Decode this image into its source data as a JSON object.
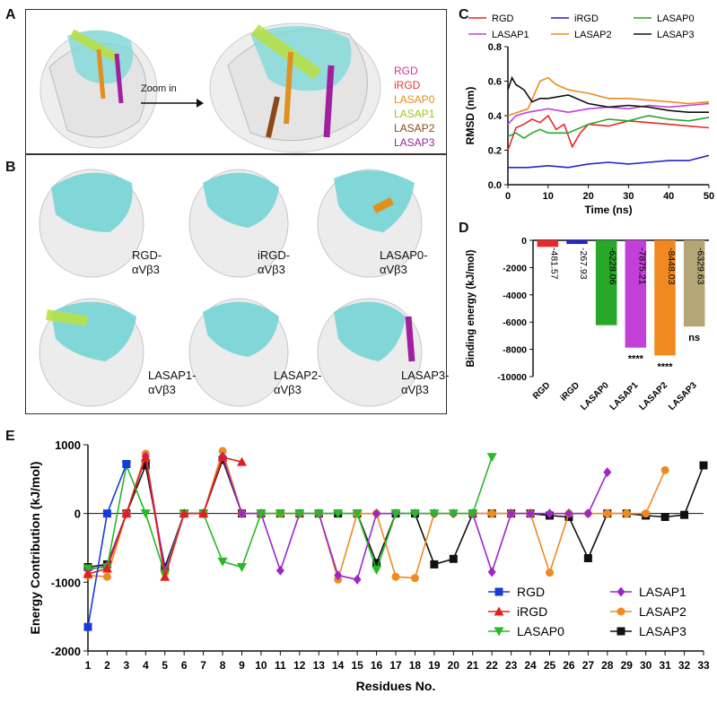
{
  "panels": {
    "a": "A",
    "b": "B",
    "c": "C",
    "d": "D",
    "e": "E"
  },
  "panelA": {
    "zoom_label": "Zoom in",
    "legend": [
      {
        "text": "RGD",
        "color": "#d6339a"
      },
      {
        "text": "iRGD",
        "color": "#e03a3a"
      },
      {
        "text": "LASAP0",
        "color": "#e09020"
      },
      {
        "text": "LASAP1",
        "color": "#9cc520"
      },
      {
        "text": "LASAP2",
        "color": "#8a4a18"
      },
      {
        "text": "LASAP3",
        "color": "#a020a0"
      }
    ]
  },
  "panelB": {
    "captions": [
      {
        "line1": "RGD-",
        "line2": "αVβ3"
      },
      {
        "line1": "iRGD-",
        "line2": "αVβ3"
      },
      {
        "line1": "LASAP0-",
        "line2": "αVβ3"
      },
      {
        "line1": "LASAP1-",
        "line2": "αVβ3"
      },
      {
        "line1": "LASAP2-",
        "line2": "αVβ3"
      },
      {
        "line1": "LASAP3-",
        "line2": "αVβ3"
      }
    ]
  },
  "chart_data": [
    {
      "panel": "C",
      "type": "line",
      "xlabel": "Time (ns)",
      "ylabel": "RMSD (nm)",
      "xlim": [
        0,
        50
      ],
      "ylim": [
        0,
        0.8
      ],
      "xticks": [
        "0",
        "10",
        "20",
        "30",
        "40",
        "50"
      ],
      "yticks": [
        "0.0",
        "0.2",
        "0.4",
        "0.6",
        "0.8"
      ],
      "legend_placement": "top",
      "series": [
        {
          "name": "RGD",
          "color": "#e8282a",
          "x": [
            0,
            2,
            4,
            6,
            8,
            10,
            12,
            14,
            16,
            18,
            20,
            25,
            30,
            35,
            40,
            45,
            50
          ],
          "values": [
            0.2,
            0.33,
            0.35,
            0.38,
            0.36,
            0.4,
            0.32,
            0.35,
            0.22,
            0.3,
            0.35,
            0.34,
            0.37,
            0.36,
            0.35,
            0.34,
            0.33
          ]
        },
        {
          "name": "iRGD",
          "color": "#2424c8",
          "x": [
            0,
            5,
            10,
            15,
            20,
            25,
            30,
            35,
            40,
            45,
            50
          ],
          "values": [
            0.1,
            0.1,
            0.11,
            0.1,
            0.12,
            0.13,
            0.12,
            0.13,
            0.14,
            0.14,
            0.17
          ]
        },
        {
          "name": "LASAP0",
          "color": "#28a828",
          "x": [
            0,
            2,
            4,
            6,
            8,
            10,
            15,
            20,
            25,
            30,
            35,
            40,
            45,
            50
          ],
          "values": [
            0.28,
            0.3,
            0.27,
            0.3,
            0.32,
            0.3,
            0.3,
            0.35,
            0.38,
            0.37,
            0.4,
            0.38,
            0.37,
            0.39
          ]
        },
        {
          "name": "LASAP1",
          "color": "#c040d8",
          "x": [
            0,
            2,
            5,
            10,
            15,
            20,
            25,
            30,
            35,
            40,
            45,
            50
          ],
          "values": [
            0.35,
            0.4,
            0.42,
            0.44,
            0.42,
            0.44,
            0.45,
            0.44,
            0.46,
            0.45,
            0.46,
            0.47
          ]
        },
        {
          "name": "LASAP2",
          "color": "#f08a20",
          "x": [
            0,
            5,
            8,
            10,
            12,
            15,
            20,
            25,
            30,
            35,
            40,
            45,
            50
          ],
          "values": [
            0.4,
            0.44,
            0.6,
            0.62,
            0.58,
            0.55,
            0.53,
            0.5,
            0.5,
            0.49,
            0.48,
            0.47,
            0.48
          ]
        },
        {
          "name": "LASAP3",
          "color": "#111111",
          "x": [
            0,
            1,
            2,
            4,
            6,
            8,
            10,
            15,
            20,
            25,
            30,
            35,
            40,
            45,
            50
          ],
          "values": [
            0.55,
            0.62,
            0.58,
            0.55,
            0.48,
            0.5,
            0.5,
            0.52,
            0.47,
            0.45,
            0.46,
            0.45,
            0.43,
            0.42,
            0.42
          ]
        }
      ]
    },
    {
      "panel": "D",
      "type": "bar",
      "ylabel": "Binding energy (kJ/mol)",
      "ylim": [
        -10000,
        0
      ],
      "yticks": [
        "0",
        "-2000",
        "-4000",
        "-6000",
        "-8000",
        "-10000"
      ],
      "categories": [
        "RGD",
        "iRGD",
        "LASAP0",
        "LASAP1",
        "LASAP2",
        "LASAP3"
      ],
      "values": [
        -481.57,
        -267.93,
        -6228.06,
        -7875.21,
        -8448.03,
        -6329.63
      ],
      "value_labels": [
        "-481.57",
        "-267.93",
        "-6228.06",
        "-7875.21",
        "-8448.03",
        "-6329.63"
      ],
      "colors": [
        "#e8282a",
        "#2424c8",
        "#28a828",
        "#c040d8",
        "#f08a20",
        "#b5a678"
      ],
      "significance": [
        "",
        "",
        "",
        "****",
        "****",
        "ns"
      ]
    },
    {
      "panel": "E",
      "type": "line",
      "xlabel": "Residues No.",
      "ylabel": "Energy Contribution (kJ/mol)",
      "xlim": [
        1,
        33
      ],
      "ylim": [
        -2000,
        1000
      ],
      "xticks": [
        "1",
        "2",
        "3",
        "4",
        "5",
        "6",
        "7",
        "8",
        "9",
        "10",
        "11",
        "12",
        "13",
        "14",
        "15",
        "16",
        "17",
        "18",
        "19",
        "20",
        "21",
        "22",
        "23",
        "24",
        "25",
        "26",
        "27",
        "28",
        "29",
        "30",
        "31",
        "32",
        "33"
      ],
      "yticks": [
        "1000",
        "0",
        "-1000",
        "-2000"
      ],
      "legend_placement": "bottom-right",
      "series": [
        {
          "name": "RGD",
          "color": "#1a3ad8",
          "marker": "square",
          "x": [
            1,
            2,
            3
          ],
          "values": [
            -1650,
            0,
            720
          ]
        },
        {
          "name": "iRGD",
          "color": "#e02020",
          "marker": "triangle-up",
          "x": [
            1,
            2,
            3,
            4,
            5,
            6,
            7,
            8,
            9
          ],
          "values": [
            -880,
            -800,
            0,
            820,
            -920,
            0,
            0,
            820,
            750
          ]
        },
        {
          "name": "LASAP0",
          "color": "#28b828",
          "marker": "triangle-down",
          "x": [
            1,
            2,
            3,
            4,
            5,
            6,
            7,
            8,
            9,
            10,
            11,
            12,
            13,
            14,
            15,
            16,
            17,
            18,
            19,
            20,
            21,
            22
          ],
          "values": [
            -800,
            -780,
            700,
            0,
            -880,
            0,
            0,
            -700,
            -780,
            0,
            0,
            0,
            0,
            0,
            0,
            -820,
            0,
            0,
            0,
            0,
            0,
            820
          ]
        },
        {
          "name": "LASAP1",
          "color": "#9a28c8",
          "marker": "diamond",
          "x": [
            1,
            2,
            3,
            4,
            5,
            6,
            7,
            8,
            9,
            10,
            11,
            12,
            13,
            14,
            15,
            16,
            17,
            18,
            19,
            20,
            21,
            22,
            23,
            24,
            25,
            26,
            27,
            28
          ],
          "values": [
            -820,
            -760,
            0,
            830,
            -830,
            0,
            0,
            830,
            0,
            0,
            -830,
            0,
            0,
            -900,
            -960,
            0,
            0,
            0,
            0,
            0,
            0,
            -850,
            0,
            0,
            0,
            0,
            0,
            600
          ]
        },
        {
          "name": "LASAP2",
          "color": "#f08a20",
          "marker": "circle",
          "x": [
            1,
            2,
            3,
            4,
            5,
            6,
            7,
            8,
            9,
            10,
            11,
            12,
            13,
            14,
            15,
            16,
            17,
            18,
            19,
            20,
            21,
            22,
            23,
            24,
            25,
            26,
            27,
            28,
            29,
            30,
            31
          ],
          "values": [
            -900,
            -920,
            0,
            870,
            -860,
            0,
            0,
            910,
            0,
            0,
            0,
            0,
            0,
            -960,
            0,
            0,
            -920,
            -940,
            0,
            0,
            0,
            0,
            0,
            0,
            -860,
            0,
            0,
            0,
            0,
            0,
            630
          ]
        },
        {
          "name": "LASAP3",
          "color": "#111111",
          "marker": "square",
          "x": [
            1,
            2,
            3,
            4,
            5,
            6,
            7,
            8,
            9,
            10,
            11,
            12,
            13,
            14,
            15,
            16,
            17,
            18,
            19,
            20,
            21,
            22,
            23,
            24,
            25,
            26,
            27,
            28,
            29,
            30,
            31,
            32,
            33
          ],
          "values": [
            -780,
            -740,
            0,
            700,
            -780,
            0,
            0,
            780,
            0,
            0,
            0,
            0,
            0,
            0,
            0,
            -720,
            0,
            0,
            -740,
            -660,
            0,
            0,
            0,
            0,
            -30,
            -50,
            -650,
            0,
            0,
            -30,
            -50,
            -20,
            700
          ]
        }
      ]
    }
  ]
}
